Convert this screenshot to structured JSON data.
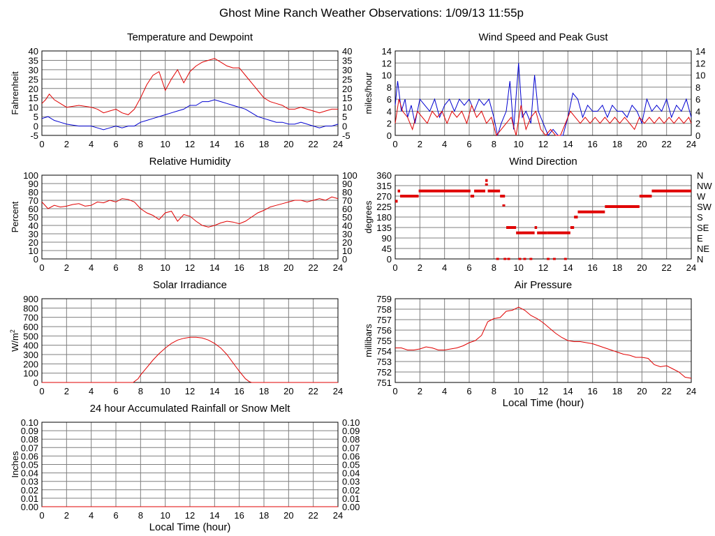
{
  "page_title": "Ghost Mine Ranch Weather Observations: 1/09/13 11:55p",
  "colors": {
    "grid": "#7f7f7f",
    "primary": "#e00000",
    "secondary": "#0000d0",
    "axis": "#000000"
  },
  "chart_data": [
    {
      "id": "temperature",
      "type": "line",
      "title": "Temperature and Dewpoint",
      "xlabel": "",
      "ylabel": "Fahrenheit",
      "xlim": [
        0,
        24
      ],
      "ylim": [
        -5,
        40
      ],
      "xticks": [
        0,
        2,
        4,
        6,
        8,
        10,
        12,
        14,
        16,
        18,
        20,
        22,
        24
      ],
      "yticks": [
        -5,
        0,
        5,
        10,
        15,
        20,
        25,
        30,
        35,
        40
      ],
      "right_axis": true,
      "series": [
        {
          "color": "#e00000",
          "x": [
            0,
            0.3,
            0.6,
            1,
            1.5,
            2,
            3,
            4,
            4.5,
            5,
            5.5,
            6,
            6.5,
            7,
            7.5,
            8,
            8.5,
            9,
            9.5,
            10,
            10.5,
            11,
            11.5,
            12,
            12.5,
            13,
            13.5,
            14,
            14.5,
            15,
            15.5,
            16,
            16.5,
            17,
            17.5,
            18,
            18.5,
            19,
            19.5,
            20,
            20.5,
            21,
            21.5,
            22,
            22.5,
            23,
            23.5,
            24
          ],
          "y": [
            12,
            14,
            17,
            14,
            12,
            10,
            11,
            10,
            9,
            7,
            8,
            9,
            7,
            6,
            9,
            15,
            22,
            27,
            29,
            19,
            25,
            30,
            23,
            29,
            32,
            34,
            35,
            36,
            34,
            32,
            31,
            31,
            27,
            23,
            19,
            15,
            13,
            12,
            11,
            9,
            9,
            10,
            9,
            8,
            7,
            8,
            9,
            9
          ]
        },
        {
          "color": "#0000d0",
          "x": [
            0,
            0.5,
            1,
            1.5,
            2,
            3,
            4,
            4.5,
            5,
            5.5,
            6,
            6.5,
            7,
            7.5,
            8,
            8.5,
            9,
            9.5,
            10,
            10.5,
            11,
            11.5,
            12,
            12.5,
            13,
            13.5,
            14,
            14.5,
            15,
            15.5,
            16,
            16.5,
            17,
            17.5,
            18,
            18.5,
            19,
            19.5,
            20,
            20.5,
            21,
            21.5,
            22,
            22.5,
            23,
            23.5,
            24
          ],
          "y": [
            4,
            5,
            3,
            2,
            1,
            0,
            0,
            -1,
            -2,
            -1,
            0,
            -1,
            0,
            0,
            2,
            3,
            4,
            5,
            6,
            7,
            8,
            9,
            11,
            11,
            13,
            13,
            14,
            13,
            12,
            11,
            10,
            9,
            7,
            5,
            4,
            3,
            2,
            2,
            1,
            1,
            2,
            1,
            0,
            -1,
            0,
            0,
            1
          ]
        }
      ]
    },
    {
      "id": "wind_speed",
      "type": "line",
      "title": "Wind Speed and Peak Gust",
      "xlabel": "",
      "ylabel": "miles/hour",
      "xlim": [
        0,
        24
      ],
      "ylim": [
        0,
        14
      ],
      "xticks": [
        0,
        2,
        4,
        6,
        8,
        10,
        12,
        14,
        16,
        18,
        20,
        22,
        24
      ],
      "yticks": [
        0,
        2,
        4,
        6,
        8,
        10,
        12,
        14
      ],
      "right_axis": true,
      "series": [
        {
          "color": "#0000d0",
          "x": [
            0,
            0.2,
            0.5,
            0.8,
            1,
            1.3,
            1.6,
            2,
            2.4,
            2.8,
            3.2,
            3.6,
            4,
            4.4,
            4.8,
            5.2,
            5.6,
            6,
            6.4,
            6.8,
            7.2,
            7.6,
            8,
            8.3,
            8.6,
            9,
            9.3,
            9.6,
            10,
            10.3,
            10.6,
            11,
            11.3,
            11.6,
            12,
            12.4,
            12.8,
            13.2,
            13.6,
            14,
            14.4,
            14.8,
            15.2,
            15.6,
            16,
            16.4,
            16.8,
            17.2,
            17.6,
            18,
            18.4,
            18.8,
            19.2,
            19.6,
            20,
            20.4,
            20.8,
            21.2,
            21.6,
            22,
            22.4,
            22.8,
            23.2,
            23.6,
            24
          ],
          "y": [
            5,
            9,
            4,
            6,
            3,
            5,
            2,
            6,
            5,
            4,
            6,
            3,
            5,
            6,
            4,
            6,
            5,
            6,
            4,
            6,
            5,
            6,
            3,
            0,
            2,
            4,
            9,
            1,
            12,
            3,
            4,
            2,
            10,
            4,
            2,
            0,
            1,
            0,
            0,
            3,
            7,
            6,
            3,
            5,
            4,
            4,
            5,
            3,
            5,
            4,
            4,
            3,
            5,
            4,
            2,
            6,
            4,
            5,
            4,
            6,
            3,
            5,
            4,
            6,
            3
          ]
        },
        {
          "color": "#e00000",
          "x": [
            0,
            0.3,
            0.6,
            1,
            1.4,
            1.8,
            2.2,
            2.6,
            3,
            3.4,
            3.8,
            4.2,
            4.6,
            5,
            5.4,
            5.8,
            6.2,
            6.6,
            7,
            7.4,
            7.8,
            8.2,
            8.6,
            9,
            9.4,
            9.8,
            10.2,
            10.6,
            11,
            11.4,
            11.8,
            12.2,
            12.6,
            13,
            13.4,
            13.8,
            14.2,
            14.6,
            15,
            15.4,
            15.8,
            16.2,
            16.6,
            17,
            17.4,
            17.8,
            18.2,
            18.6,
            19,
            19.4,
            19.8,
            20.2,
            20.6,
            21,
            21.4,
            21.8,
            22.2,
            22.6,
            23,
            23.4,
            23.8,
            24
          ],
          "y": [
            2,
            6,
            4,
            3,
            1,
            4,
            3,
            2,
            4,
            3,
            4,
            2,
            4,
            3,
            4,
            2,
            5,
            3,
            4,
            2,
            3,
            0,
            1,
            2,
            3,
            0,
            5,
            1,
            3,
            4,
            1,
            0,
            1,
            0,
            0,
            2,
            4,
            3,
            2,
            3,
            2,
            3,
            2,
            3,
            2,
            3,
            2,
            3,
            2,
            1,
            3,
            2,
            3,
            2,
            3,
            2,
            3,
            2,
            3,
            2,
            3,
            2
          ]
        }
      ]
    },
    {
      "id": "humidity",
      "type": "line",
      "title": "Relative Humidity",
      "xlabel": "",
      "ylabel": "Percent",
      "xlim": [
        0,
        24
      ],
      "ylim": [
        0,
        100
      ],
      "xticks": [
        0,
        2,
        4,
        6,
        8,
        10,
        12,
        14,
        16,
        18,
        20,
        22,
        24
      ],
      "yticks": [
        0,
        10,
        20,
        30,
        40,
        50,
        60,
        70,
        80,
        90,
        100
      ],
      "right_axis": true,
      "series": [
        {
          "color": "#e00000",
          "x": [
            0,
            0.5,
            1,
            1.5,
            2,
            2.5,
            3,
            3.5,
            4,
            4.5,
            5,
            5.5,
            6,
            6.5,
            7,
            7.5,
            8,
            8.5,
            9,
            9.5,
            10,
            10.5,
            11,
            11.5,
            12,
            12.5,
            13,
            13.5,
            14,
            14.5,
            15,
            15.5,
            16,
            16.5,
            17,
            17.5,
            18,
            18.5,
            19,
            19.5,
            20,
            20.5,
            21,
            21.5,
            22,
            22.5,
            23,
            23.5,
            24
          ],
          "y": [
            68,
            60,
            64,
            62,
            63,
            65,
            66,
            63,
            64,
            68,
            67,
            70,
            68,
            72,
            71,
            68,
            60,
            55,
            52,
            47,
            55,
            57,
            45,
            53,
            51,
            45,
            40,
            38,
            40,
            43,
            45,
            44,
            42,
            45,
            50,
            55,
            58,
            62,
            64,
            66,
            68,
            70,
            70,
            68,
            70,
            72,
            70,
            74,
            72
          ]
        }
      ]
    },
    {
      "id": "wind_direction",
      "type": "scatter",
      "title": "Wind Direction",
      "xlabel": "",
      "ylabel": "degrees",
      "xlim": [
        0,
        24
      ],
      "ylim": [
        0,
        360
      ],
      "xticks": [
        0,
        2,
        4,
        6,
        8,
        10,
        12,
        14,
        16,
        18,
        20,
        22,
        24
      ],
      "yticks": [
        0,
        45,
        90,
        135,
        180,
        225,
        270,
        315,
        360
      ],
      "right_labels": [
        "N",
        "NE",
        "E",
        "SE",
        "S",
        "SW",
        "W",
        "NW",
        "N"
      ],
      "series": [
        {
          "color": "#e00000",
          "segments": [
            [
              0,
              0.2,
              248
            ],
            [
              0.2,
              0.4,
              292
            ],
            [
              0.4,
              1.9,
              270
            ],
            [
              1.9,
              6.1,
              292
            ],
            [
              6.1,
              6.4,
              270
            ],
            [
              6.4,
              7.3,
              292
            ],
            [
              7.3,
              7.5,
              337
            ],
            [
              7.5,
              8.5,
              292
            ],
            [
              8.5,
              8.9,
              270
            ],
            [
              9,
              9.8,
              135
            ],
            [
              9.8,
              10.3,
              112
            ],
            [
              10.3,
              11.3,
              112
            ],
            [
              11.3,
              11.5,
              135
            ],
            [
              11.5,
              12.3,
              112
            ],
            [
              12.3,
              14.2,
              112
            ],
            [
              14.2,
              14.5,
              135
            ],
            [
              14.5,
              14.8,
              180
            ],
            [
              14.8,
              17,
              202
            ],
            [
              17,
              19.8,
              225
            ],
            [
              19.8,
              20.8,
              270
            ],
            [
              20.8,
              24,
              292
            ]
          ],
          "points": [
            [
              8.3,
              0
            ],
            [
              8.9,
              0
            ],
            [
              9.2,
              0
            ],
            [
              10.1,
              0
            ],
            [
              10.5,
              0
            ],
            [
              11,
              0
            ],
            [
              12.4,
              0
            ],
            [
              12.9,
              0
            ],
            [
              13.8,
              0
            ],
            [
              7.4,
              320
            ],
            [
              8.8,
              230
            ]
          ]
        }
      ]
    },
    {
      "id": "solar",
      "type": "area",
      "title": "Solar Irradiance",
      "xlabel": "",
      "ylabel": "W/m2",
      "xlim": [
        0,
        24
      ],
      "ylim": [
        0,
        900
      ],
      "xticks": [
        0,
        2,
        4,
        6,
        8,
        10,
        12,
        14,
        16,
        18,
        20,
        22,
        24
      ],
      "yticks": [
        0,
        100,
        200,
        300,
        400,
        500,
        600,
        700,
        800,
        900
      ],
      "right_axis": false,
      "series": [
        {
          "color": "#e00000",
          "x": [
            0,
            7.4,
            7.8,
            8,
            8.5,
            9,
            9.5,
            10,
            10.5,
            11,
            11.5,
            12,
            12.5,
            13,
            13.5,
            14,
            14.5,
            15,
            15.5,
            16,
            16.5,
            16.8,
            17,
            24
          ],
          "y": [
            0,
            0,
            40,
            80,
            160,
            240,
            310,
            370,
            420,
            455,
            475,
            485,
            485,
            478,
            455,
            420,
            370,
            300,
            210,
            120,
            40,
            10,
            0,
            0
          ]
        }
      ]
    },
    {
      "id": "pressure",
      "type": "line",
      "title": "Air Pressure",
      "xlabel": "Local Time (hour)",
      "ylabel": "millibars",
      "xlim": [
        0,
        24
      ],
      "ylim": [
        751,
        759
      ],
      "xticks": [
        0,
        2,
        4,
        6,
        8,
        10,
        12,
        14,
        16,
        18,
        20,
        22,
        24
      ],
      "yticks": [
        751,
        752,
        753,
        754,
        755,
        756,
        757,
        758,
        759
      ],
      "right_axis": false,
      "series": [
        {
          "color": "#e00000",
          "x": [
            0,
            0.5,
            1,
            1.5,
            2,
            2.5,
            3,
            3.5,
            4,
            4.5,
            5,
            5.5,
            6,
            6.5,
            7,
            7.5,
            8,
            8.5,
            9,
            9.5,
            10,
            10.5,
            11,
            11.5,
            12,
            12.5,
            13,
            13.5,
            14,
            14.5,
            15,
            15.5,
            16,
            16.5,
            17,
            17.5,
            18,
            18.5,
            19,
            19.5,
            20,
            20.5,
            21,
            21.5,
            22,
            22.5,
            23,
            23.5,
            24
          ],
          "y": [
            754.3,
            754.3,
            754.1,
            754.1,
            754.2,
            754.4,
            754.3,
            754.1,
            754.1,
            754.2,
            754.3,
            754.5,
            754.8,
            755,
            755.5,
            756.8,
            757.1,
            757.2,
            757.8,
            757.9,
            758.2,
            757.9,
            757.4,
            757.1,
            756.7,
            756.2,
            755.7,
            755.3,
            755,
            754.9,
            754.9,
            754.8,
            754.7,
            754.5,
            754.3,
            754.1,
            753.9,
            753.7,
            753.6,
            753.4,
            753.4,
            753.3,
            752.7,
            752.5,
            752.6,
            752.3,
            752,
            751.5,
            751.4
          ]
        }
      ]
    },
    {
      "id": "rainfall",
      "type": "line",
      "title": "24 hour Accumulated Rainfall or Snow Melt",
      "xlabel": "Local Time (hour)",
      "ylabel": "Inches",
      "xlim": [
        0,
        24
      ],
      "ylim": [
        0,
        0.1
      ],
      "xticks": [
        0,
        2,
        4,
        6,
        8,
        10,
        12,
        14,
        16,
        18,
        20,
        22,
        24
      ],
      "yticks": [
        "0.00",
        "0.01",
        "0.02",
        "0.03",
        "0.04",
        "0.05",
        "0.06",
        "0.07",
        "0.08",
        "0.09",
        "0.10"
      ],
      "right_axis": true,
      "series": [
        {
          "color": "#e00000",
          "x": [
            0,
            24
          ],
          "y": [
            0,
            0
          ]
        }
      ]
    }
  ]
}
